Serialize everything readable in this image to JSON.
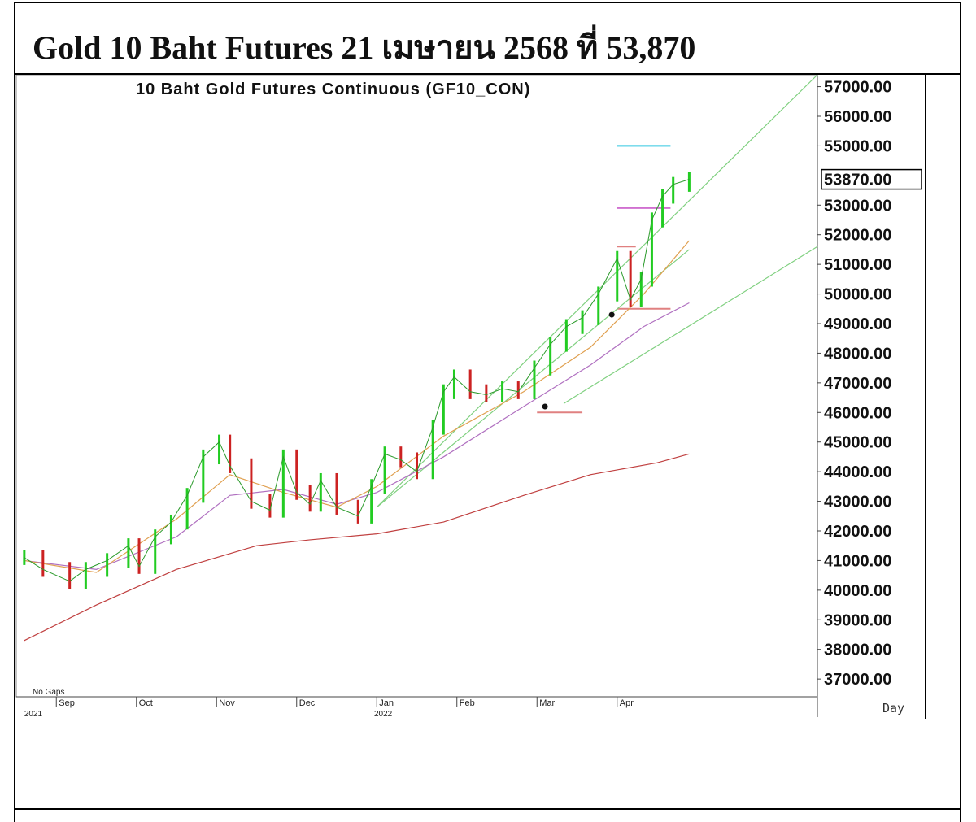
{
  "header": {
    "title": "Gold 10 Baht Futures 21 เมษายน 2568 ที่ 53,870"
  },
  "chart_data": {
    "type": "line",
    "title": "10 Baht Gold Futures Continuous (GF10_CON)",
    "ylim": [
      36400,
      57400
    ],
    "y_ticks": [
      "57000.00",
      "56000.00",
      "55000.00",
      "53000.00",
      "52000.00",
      "51000.00",
      "50000.00",
      "49000.00",
      "48000.00",
      "47000.00",
      "46000.00",
      "45000.00",
      "44000.00",
      "43000.00",
      "42000.00",
      "41000.00",
      "40000.00",
      "39000.00",
      "38000.00",
      "37000.00"
    ],
    "y_tick_values": [
      57000,
      56000,
      55000,
      53000,
      52000,
      51000,
      50000,
      49000,
      48000,
      47000,
      46000,
      45000,
      44000,
      43000,
      42000,
      41000,
      40000,
      39000,
      38000,
      37000
    ],
    "last_price_label": "53870.00",
    "last_price": 53870,
    "x_months": [
      "Sep",
      "Oct",
      "Nov",
      "Dec",
      "Jan",
      "Feb",
      "Mar",
      "Apr"
    ],
    "x_month_days": [
      15,
      45,
      75,
      105,
      135,
      165,
      195,
      225
    ],
    "x_range_days": [
      0,
      300
    ],
    "year_labels": [
      {
        "label": "2021",
        "day": 3
      },
      {
        "label": "2022",
        "day": 134
      }
    ],
    "no_gaps_label": "No Gaps",
    "period_label": "Day",
    "price_series": {
      "name": "GF10_CON",
      "days": [
        3,
        10,
        20,
        26,
        34,
        42,
        46,
        52,
        58,
        64,
        70,
        76,
        80,
        88,
        95,
        100,
        105,
        110,
        114,
        120,
        128,
        133,
        138,
        144,
        150,
        156,
        160,
        164,
        170,
        176,
        182,
        188,
        194,
        200,
        206,
        212,
        218,
        225,
        230,
        234,
        238,
        242,
        246,
        252
      ],
      "values": [
        41100,
        40700,
        40300,
        40700,
        41000,
        41500,
        40800,
        41800,
        42300,
        43200,
        44500,
        45000,
        44200,
        43000,
        42700,
        44500,
        43300,
        42900,
        43700,
        42800,
        42500,
        43500,
        44600,
        44400,
        44000,
        45500,
        46700,
        47200,
        46700,
        46600,
        46800,
        46700,
        47500,
        48300,
        48900,
        49200,
        50000,
        51200,
        49800,
        50500,
        52500,
        53300,
        53700,
        53870
      ]
    },
    "moving_averages": [
      {
        "name": "MA-200",
        "color": "#c04040",
        "days": [
          3,
          30,
          60,
          90,
          110,
          135,
          160,
          190,
          215,
          240,
          252
        ],
        "values": [
          38300,
          39500,
          40700,
          41500,
          41700,
          41900,
          42300,
          43200,
          43900,
          44300,
          44600
        ]
      },
      {
        "name": "MA-25",
        "color": "#b070c0",
        "days": [
          3,
          30,
          60,
          80,
          100,
          120,
          135,
          160,
          190,
          215,
          235,
          252
        ],
        "values": [
          41000,
          40700,
          41800,
          43200,
          43400,
          42900,
          43300,
          44500,
          46200,
          47600,
          48900,
          49700
        ]
      },
      {
        "name": "MA-10",
        "color": "#e0a050",
        "days": [
          3,
          30,
          60,
          80,
          100,
          120,
          135,
          160,
          190,
          215,
          235,
          252
        ],
        "values": [
          41000,
          40600,
          42400,
          43900,
          43300,
          42800,
          43500,
          45200,
          46700,
          48200,
          50000,
          51800
        ]
      }
    ],
    "trendlines": [
      {
        "name": "steep-trend",
        "color": "#80d080",
        "days": [
          135,
          300
        ],
        "values": [
          42800,
          57400
        ]
      },
      {
        "name": "mid-trend",
        "color": "#80d080",
        "days": [
          135,
          252
        ],
        "values": [
          42800,
          51500
        ]
      },
      {
        "name": "shallow-trend",
        "color": "#80d080",
        "days": [
          205,
          300
        ],
        "values": [
          46300,
          51600
        ]
      }
    ],
    "levels": [
      {
        "name": "target-high",
        "color": "#30c8e0",
        "value": 55000,
        "from_day": 225,
        "to_day": 245
      },
      {
        "name": "target-mid",
        "color": "#d070d0",
        "value": 52900,
        "from_day": 225,
        "to_day": 245
      },
      {
        "name": "resistance",
        "color": "#e08080",
        "value": 51600,
        "from_day": 225,
        "to_day": 232
      },
      {
        "name": "support-apr",
        "color": "#e08080",
        "value": 49500,
        "from_day": 225,
        "to_day": 245
      },
      {
        "name": "support-mar",
        "color": "#e08080",
        "value": 46000,
        "from_day": 195,
        "to_day": 212
      }
    ],
    "markers": [
      {
        "name": "pivot-low-mar",
        "day": 198,
        "value": 46200
      },
      {
        "name": "pivot-low-apr",
        "day": 223,
        "value": 49300
      }
    ]
  }
}
